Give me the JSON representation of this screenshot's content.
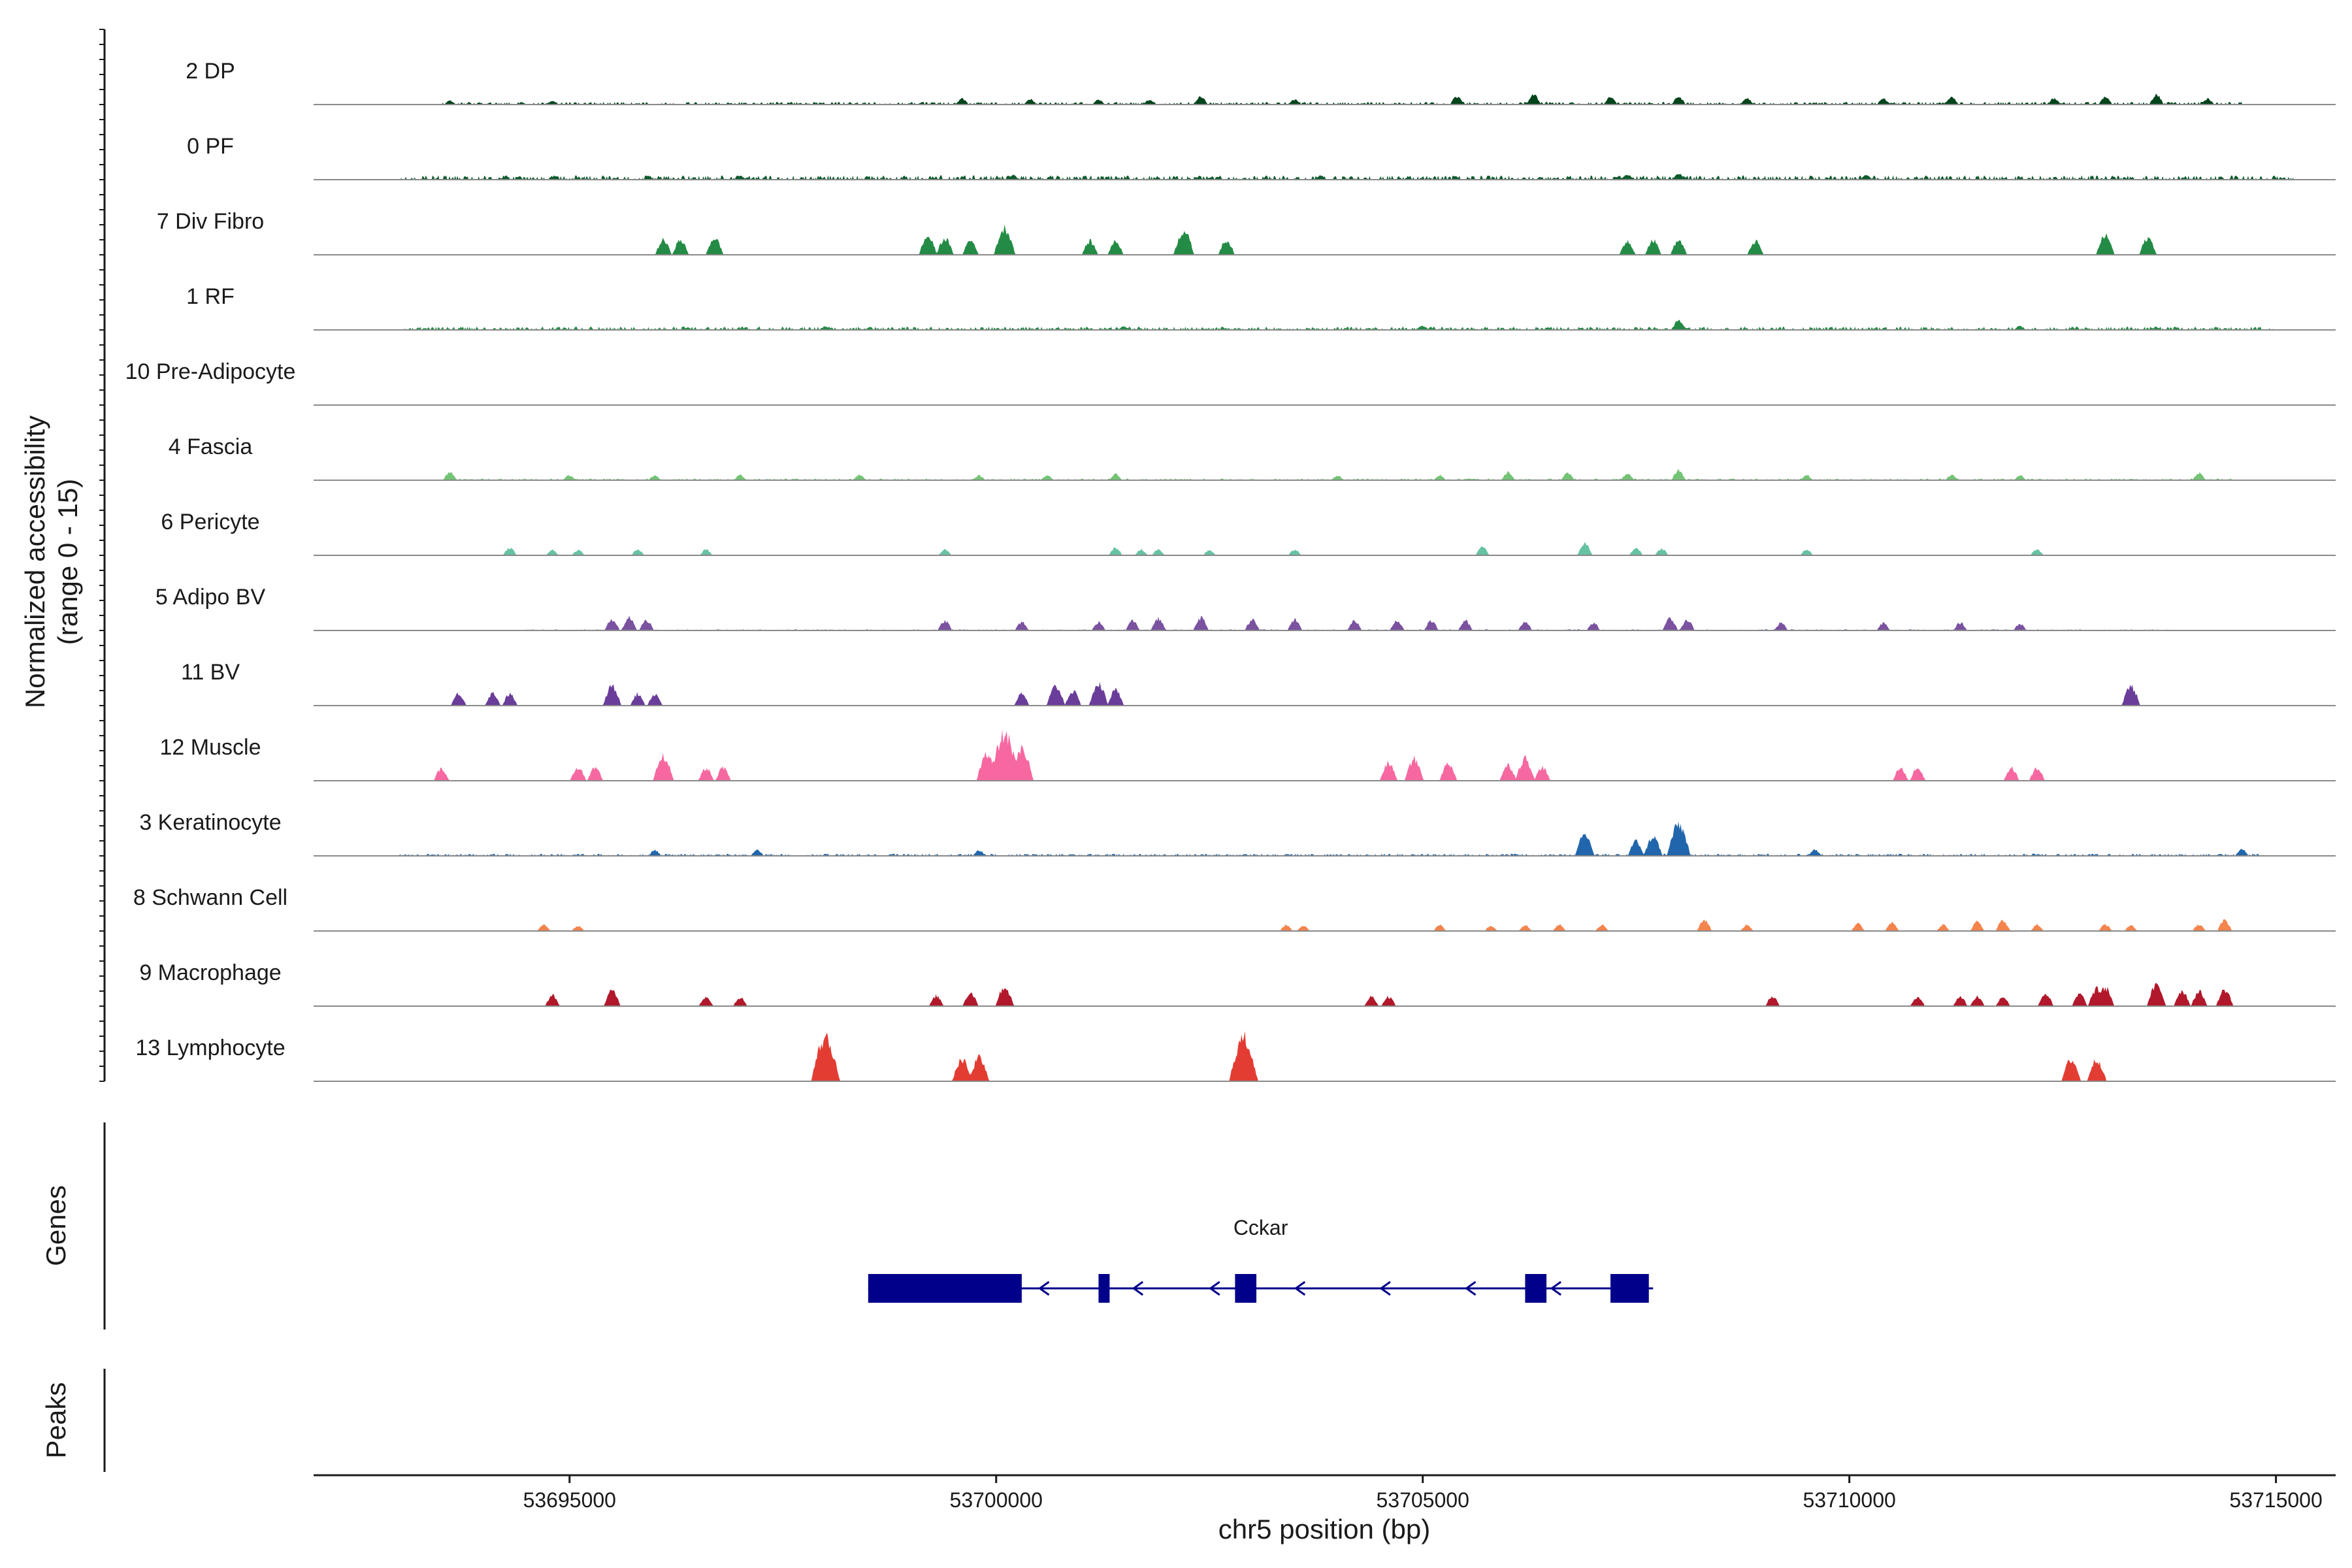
{
  "chart_data": {
    "type": "coverage",
    "ylabel_line1": "Normalized accessibility",
    "ylabel_line2": "(range 0 - 15)",
    "y_range": [
      0,
      15
    ],
    "xlabel": "chr5 position (bp)",
    "xlim": [
      53692000,
      53715700
    ],
    "xticks": [
      53695000,
      53700000,
      53705000,
      53710000,
      53715000
    ],
    "xtick_labels": [
      "53695000",
      "53700000",
      "53705000",
      "53710000",
      "53715000"
    ],
    "tracks": [
      {
        "name": "2 DP",
        "color": "#00441b",
        "noise": 0.55,
        "noise_range": [
          53693500,
          53714600
        ],
        "peaks": [
          [
            53693600,
            0.8
          ],
          [
            53694800,
            0.8
          ],
          [
            53699600,
            1.2
          ],
          [
            53700400,
            1.1
          ],
          [
            53701200,
            1.0
          ],
          [
            53701800,
            1.0
          ],
          [
            53702400,
            1.6
          ],
          [
            53703500,
            1.0
          ],
          [
            53705400,
            1.6
          ],
          [
            53706300,
            2.0
          ],
          [
            53707200,
            1.6
          ],
          [
            53708000,
            1.6
          ],
          [
            53708800,
            1.3
          ],
          [
            53710400,
            1.2
          ],
          [
            53711200,
            1.5
          ],
          [
            53712400,
            1.3
          ],
          [
            53713000,
            1.6
          ],
          [
            53713600,
            2.0
          ],
          [
            53714200,
            1.2
          ]
        ]
      },
      {
        "name": "0 PF",
        "color": "#0d5b2c",
        "noise": 0.9,
        "noise_range": [
          53693000,
          53715200
        ],
        "peaks": [
          [
            53697000,
            0.8
          ],
          [
            53700200,
            0.9
          ],
          [
            53703800,
            0.9
          ],
          [
            53707400,
            1.0
          ],
          [
            53708000,
            1.2
          ],
          [
            53710200,
            0.9
          ]
        ]
      },
      {
        "name": "7 Div Fibro",
        "color": "#238b45",
        "noise": 0.0,
        "noise_range": [
          53693000,
          53715000
        ],
        "peaks": [
          [
            53696100,
            3.0
          ],
          [
            53696300,
            3.0
          ],
          [
            53696700,
            3.5
          ],
          [
            53699200,
            3.8
          ],
          [
            53699400,
            3.4
          ],
          [
            53699700,
            3.0
          ],
          [
            53700100,
            5.5
          ],
          [
            53701100,
            2.8
          ],
          [
            53701400,
            2.8
          ],
          [
            53702200,
            5.0
          ],
          [
            53702700,
            3.0
          ],
          [
            53707400,
            2.8
          ],
          [
            53707700,
            3.0
          ],
          [
            53708000,
            3.0
          ],
          [
            53708900,
            2.8
          ],
          [
            53713000,
            4.0
          ],
          [
            53713500,
            3.5
          ]
        ]
      },
      {
        "name": "1 RF",
        "color": "#238b45",
        "noise": 0.7,
        "noise_range": [
          53693000,
          53715000
        ],
        "peaks": [
          [
            53698000,
            0.7
          ],
          [
            53701500,
            0.7
          ],
          [
            53705000,
            0.9
          ],
          [
            53708000,
            1.9
          ],
          [
            53712000,
            0.8
          ]
        ]
      },
      {
        "name": "10 Pre-Adipocyte",
        "color": "#41ab5d",
        "noise": 0.0,
        "noise_range": [
          53693000,
          53715000
        ],
        "peaks": []
      },
      {
        "name": "4 Fascia",
        "color": "#74c476",
        "noise": 0.35,
        "noise_range": [
          53693500,
          53714500
        ],
        "peaks": [
          [
            53693600,
            1.7
          ],
          [
            53695000,
            1.0
          ],
          [
            53696000,
            1.0
          ],
          [
            53697000,
            1.1
          ],
          [
            53698400,
            1.1
          ],
          [
            53699800,
            1.0
          ],
          [
            53700600,
            1.0
          ],
          [
            53701400,
            1.2
          ],
          [
            53704000,
            1.0
          ],
          [
            53705200,
            1.0
          ],
          [
            53706000,
            1.6
          ],
          [
            53706700,
            1.5
          ],
          [
            53707400,
            1.4
          ],
          [
            53708000,
            2.0
          ],
          [
            53709500,
            1.0
          ],
          [
            53711200,
            1.1
          ],
          [
            53712000,
            1.0
          ],
          [
            53714100,
            1.5
          ]
        ]
      },
      {
        "name": "6 Pericyte",
        "color": "#66c2a4",
        "noise": 0.0,
        "noise_range": [
          53693000,
          53715000
        ],
        "peaks": [
          [
            53694300,
            1.6
          ],
          [
            53694800,
            1.1
          ],
          [
            53695100,
            1.1
          ],
          [
            53695800,
            1.2
          ],
          [
            53696600,
            1.2
          ],
          [
            53699400,
            1.2
          ],
          [
            53701400,
            1.6
          ],
          [
            53701700,
            1.2
          ],
          [
            53701900,
            1.2
          ],
          [
            53702500,
            1.1
          ],
          [
            53703500,
            1.2
          ],
          [
            53705700,
            1.7
          ],
          [
            53706900,
            2.5
          ],
          [
            53707500,
            1.6
          ],
          [
            53707800,
            1.4
          ],
          [
            53709500,
            1.2
          ],
          [
            53712200,
            1.3
          ]
        ]
      },
      {
        "name": "5 Adipo BV",
        "color": "#7a52a0",
        "noise": 0.25,
        "noise_range": [
          53694500,
          53713800
        ],
        "peaks": [
          [
            53695500,
            2.3
          ],
          [
            53695700,
            2.6
          ],
          [
            53695900,
            2.2
          ],
          [
            53699400,
            2.0
          ],
          [
            53700300,
            1.7
          ],
          [
            53701200,
            1.7
          ],
          [
            53701600,
            2.0
          ],
          [
            53701900,
            2.4
          ],
          [
            53702400,
            2.6
          ],
          [
            53703000,
            2.2
          ],
          [
            53703500,
            2.2
          ],
          [
            53704200,
            2.0
          ],
          [
            53704700,
            2.1
          ],
          [
            53705100,
            2.0
          ],
          [
            53705500,
            2.0
          ],
          [
            53706200,
            1.8
          ],
          [
            53707000,
            1.6
          ],
          [
            53707900,
            2.6
          ],
          [
            53708100,
            2.2
          ],
          [
            53709200,
            1.6
          ],
          [
            53710400,
            1.5
          ],
          [
            53711300,
            1.6
          ],
          [
            53712000,
            1.4
          ]
        ]
      },
      {
        "name": "11 BV",
        "color": "#6a3d9a",
        "noise": 0.0,
        "noise_range": [
          53693000,
          53715000
        ],
        "peaks": [
          [
            53693700,
            2.5
          ],
          [
            53694100,
            2.6
          ],
          [
            53694300,
            2.4
          ],
          [
            53695500,
            4.0
          ],
          [
            53695800,
            2.4
          ],
          [
            53696000,
            2.4
          ],
          [
            53700300,
            2.4
          ],
          [
            53700700,
            4.0
          ],
          [
            53700900,
            3.0
          ],
          [
            53701200,
            4.4
          ],
          [
            53701400,
            3.2
          ],
          [
            53713300,
            4.0
          ]
        ]
      },
      {
        "name": "12 Muscle",
        "color": "#f768a1",
        "noise": 0.0,
        "noise_range": [
          53693000,
          53715000
        ],
        "peaks": [
          [
            53693500,
            2.5
          ],
          [
            53695100,
            2.8
          ],
          [
            53695300,
            2.6
          ],
          [
            53696100,
            5.0
          ],
          [
            53696600,
            2.6
          ],
          [
            53696800,
            2.6
          ],
          [
            53699900,
            5.8
          ],
          [
            53700100,
            9.5
          ],
          [
            53700300,
            6.5
          ],
          [
            53704600,
            3.6
          ],
          [
            53704900,
            4.4
          ],
          [
            53705300,
            3.6
          ],
          [
            53706000,
            3.2
          ],
          [
            53706200,
            4.6
          ],
          [
            53706400,
            2.8
          ],
          [
            53710600,
            2.6
          ],
          [
            53710800,
            2.6
          ],
          [
            53711900,
            2.6
          ],
          [
            53712200,
            2.6
          ]
        ]
      },
      {
        "name": "3 Keratinocyte",
        "color": "#2166ac",
        "noise": 0.45,
        "noise_range": [
          53693000,
          53714800
        ],
        "peaks": [
          [
            53696000,
            1.2
          ],
          [
            53697200,
            1.2
          ],
          [
            53699800,
            1.2
          ],
          [
            53706900,
            4.4
          ],
          [
            53707500,
            3.0
          ],
          [
            53707700,
            4.0
          ],
          [
            53708000,
            6.5
          ],
          [
            53709600,
            1.3
          ],
          [
            53714600,
            1.4
          ]
        ]
      },
      {
        "name": "8 Schwann Cell",
        "color": "#f4844d",
        "noise": 0.0,
        "noise_range": [
          53693000,
          53715000
        ],
        "peaks": [
          [
            53694700,
            1.3
          ],
          [
            53695100,
            1.1
          ],
          [
            53703400,
            1.2
          ],
          [
            53703600,
            1.2
          ],
          [
            53705200,
            1.2
          ],
          [
            53705800,
            1.1
          ],
          [
            53706200,
            1.2
          ],
          [
            53706600,
            1.4
          ],
          [
            53707100,
            1.3
          ],
          [
            53708300,
            2.3
          ],
          [
            53708800,
            1.3
          ],
          [
            53710100,
            1.5
          ],
          [
            53710500,
            1.8
          ],
          [
            53711100,
            1.3
          ],
          [
            53711500,
            1.9
          ],
          [
            53711800,
            2.2
          ],
          [
            53712200,
            1.3
          ],
          [
            53713000,
            1.4
          ],
          [
            53713300,
            1.2
          ],
          [
            53714100,
            1.4
          ],
          [
            53714400,
            2.2
          ]
        ]
      },
      {
        "name": "9 Macrophage",
        "color": "#b2182b",
        "noise": 0.0,
        "noise_range": [
          53693000,
          53715000
        ],
        "peaks": [
          [
            53694800,
            2.2
          ],
          [
            53695500,
            3.2
          ],
          [
            53696600,
            2.0
          ],
          [
            53697000,
            1.8
          ],
          [
            53699300,
            2.1
          ],
          [
            53699700,
            2.8
          ],
          [
            53700100,
            4.0
          ],
          [
            53704400,
            2.0
          ],
          [
            53704600,
            2.0
          ],
          [
            53709100,
            2.0
          ],
          [
            53710800,
            2.0
          ],
          [
            53711300,
            2.0
          ],
          [
            53711500,
            2.0
          ],
          [
            53711800,
            2.0
          ],
          [
            53712300,
            2.6
          ],
          [
            53712700,
            2.5
          ],
          [
            53712900,
            3.5
          ],
          [
            53713000,
            3.8
          ],
          [
            53713600,
            4.3
          ],
          [
            53713900,
            3.2
          ],
          [
            53714100,
            3.0
          ],
          [
            53714400,
            3.4
          ]
        ]
      },
      {
        "name": "13 Lymphocyte",
        "color": "#e33d33",
        "noise": 0.0,
        "noise_range": [
          53693000,
          53715000
        ],
        "peaks": [
          [
            53698000,
            9.0
          ],
          [
            53699600,
            4.5
          ],
          [
            53699800,
            4.8
          ],
          [
            53702900,
            9.0
          ],
          [
            53712600,
            4.5
          ],
          [
            53712900,
            4.5
          ]
        ]
      }
    ]
  },
  "genes_panel": {
    "label": "Genes",
    "gene_name": "Cckar",
    "color": "#00008b",
    "span": [
      53698500,
      53707700
    ],
    "strand": "-",
    "exons": [
      [
        53698500,
        53700300
      ],
      [
        53701200,
        53701330
      ],
      [
        53702800,
        53703050
      ],
      [
        53706200,
        53706450
      ],
      [
        53707200,
        53707650
      ]
    ],
    "arrow_positions": [
      53700550,
      53701650,
      53702550,
      53703550,
      53704550,
      53705550,
      53706550
    ]
  },
  "peaks_panel": {
    "label": "Peaks"
  }
}
